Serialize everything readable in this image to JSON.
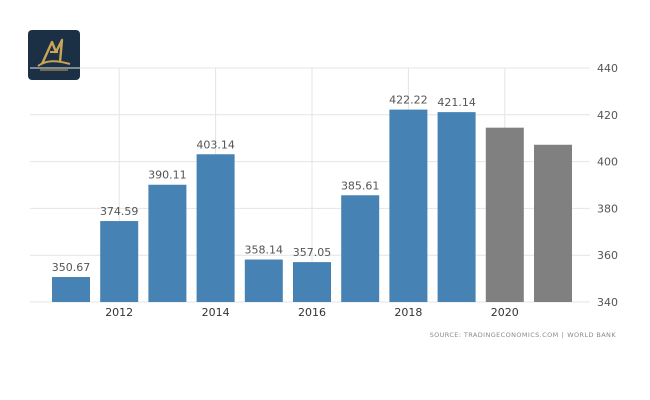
{
  "chart_data": {
    "type": "bar",
    "title": "",
    "xlabel": "",
    "ylabel": "",
    "categories": [
      "2011",
      "2012",
      "2013",
      "2014",
      "2015",
      "2016",
      "2017",
      "2018",
      "2019",
      "2020",
      "2021"
    ],
    "x_tick_labels": [
      "2012",
      "2014",
      "2016",
      "2018",
      "2020"
    ],
    "series": [
      {
        "values": [
          350.67,
          374.59,
          390.11,
          403.14,
          358.14,
          357.05,
          385.61,
          422.22,
          421.14,
          414.5,
          407.2
        ],
        "colors": [
          "#4682b4",
          "#4682b4",
          "#4682b4",
          "#4682b4",
          "#4682b4",
          "#4682b4",
          "#4682b4",
          "#4682b4",
          "#4682b4",
          "#808080",
          "#808080"
        ]
      }
    ],
    "data_labels": [
      "350.67",
      "374.59",
      "390.11",
      "403.14",
      "358.14",
      "357.05",
      "385.61",
      "422.22",
      "421.14",
      "",
      ""
    ],
    "ylim": [
      340,
      440
    ],
    "y_ticks": [
      340,
      360,
      380,
      400,
      420,
      440
    ],
    "y_axis_side": "right",
    "grid": true,
    "actual_color": "#4682b4",
    "forecast_color": "#808080"
  },
  "source": {
    "label": "SOURCE: TRADINGECONOMICS.COM",
    "separator": "|",
    "provider": "WORLD BANK"
  },
  "logo": {
    "icon": "brand-logo-icon"
  }
}
